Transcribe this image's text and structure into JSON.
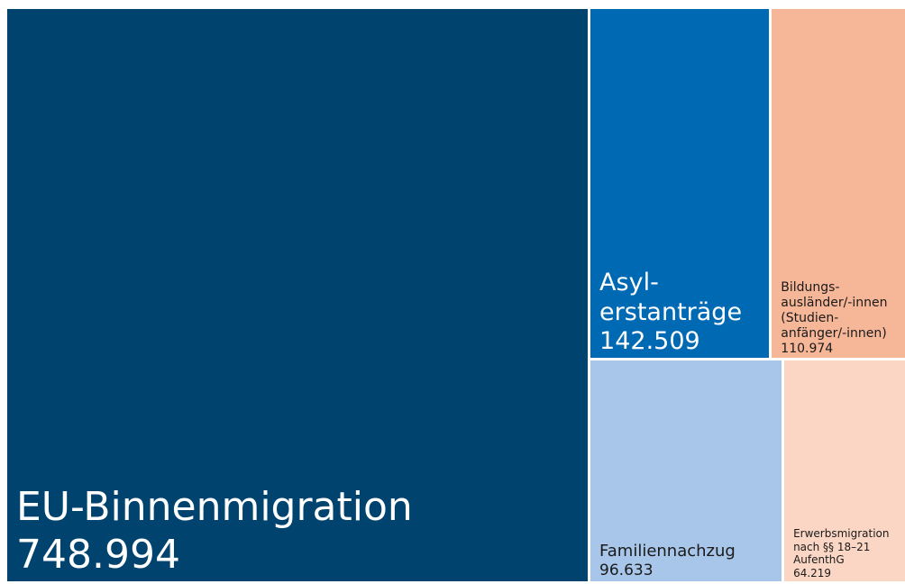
{
  "chart_data": {
    "type": "treemap",
    "categories": [
      "EU-Binnenmigration",
      "Asyl-\nerstanträge",
      "Bildungs-\nausländer/-innen\n(Studien-\nanfänger/-innen)",
      "Familiennachzug",
      "Erwerbsmigration\nnach §§ 18–21\nAufenthG"
    ],
    "values": [
      748994,
      142509,
      110974,
      96633,
      64219
    ],
    "value_labels": [
      "748.994",
      "142.509",
      "110.974",
      "96.633",
      "64.219"
    ],
    "colors": [
      "#00436f",
      "#0069b4",
      "#f6b799",
      "#a8c6e9",
      "#fbd6c5"
    ]
  }
}
